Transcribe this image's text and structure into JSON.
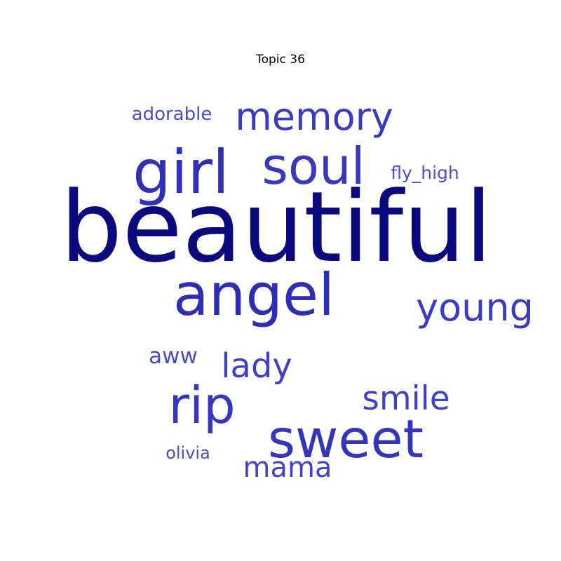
{
  "chart_data": {
    "type": "wordcloud",
    "title": "Topic 36",
    "words": [
      {
        "text": "beautiful",
        "color": "#0a0a7e"
      },
      {
        "text": "angel",
        "color": "#2d2db5"
      },
      {
        "text": "girl",
        "color": "#2f2fb7"
      },
      {
        "text": "sweet",
        "color": "#3434bd"
      },
      {
        "text": "soul",
        "color": "#3838bf"
      },
      {
        "text": "rip",
        "color": "#3636be"
      },
      {
        "text": "memory",
        "color": "#3b3bc1"
      },
      {
        "text": "young",
        "color": "#3c3cc3"
      },
      {
        "text": "lady",
        "color": "#4040c6"
      },
      {
        "text": "smile",
        "color": "#4141c7"
      },
      {
        "text": "mama",
        "color": "#4343c8"
      },
      {
        "text": "aww",
        "color": "#4a4acc"
      },
      {
        "text": "adorable",
        "color": "#4a4acc"
      },
      {
        "text": "fly_high",
        "color": "#4d4dcd"
      },
      {
        "text": "olivia",
        "color": "#4d4dcd"
      }
    ]
  }
}
